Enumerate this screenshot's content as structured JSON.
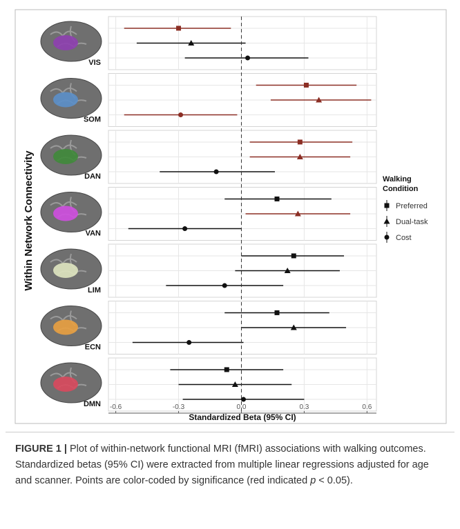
{
  "chart_data": {
    "type": "forest",
    "y_label": "Within Network Connectivity",
    "x_label": "Standardized Beta (95% CI)",
    "xlim": [
      -0.635,
      0.645
    ],
    "xticks": [
      -0.6,
      -0.3,
      {
        "value": 0,
        "label": "0.0"
      },
      0.3,
      0.6
    ],
    "grid": true,
    "legend_title": [
      "Walking",
      "Condition"
    ],
    "series": [
      {
        "name": "Preferred",
        "marker": "square"
      },
      {
        "name": "Dual-task",
        "marker": "triangle"
      },
      {
        "name": "Cost",
        "marker": "circle"
      }
    ],
    "panels": [
      {
        "name": "VIS",
        "color": "#8e3fb0",
        "values": [
          -0.3,
          -0.24,
          0.03
        ],
        "lower": [
          -0.56,
          -0.5,
          -0.27
        ],
        "upper": [
          -0.05,
          0.02,
          0.32
        ],
        "colors": [
          "#8b2e24",
          "#111111",
          "#111111"
        ]
      },
      {
        "name": "SOM",
        "color": "#5b8fc9",
        "values": [
          0.31,
          0.37,
          -0.29
        ],
        "lower": [
          0.07,
          0.14,
          -0.56
        ],
        "upper": [
          0.55,
          0.62,
          -0.02
        ],
        "colors": [
          "#8b2e24",
          "#8b2e24",
          "#8b2e24"
        ]
      },
      {
        "name": "DAN",
        "color": "#3f8a3a",
        "values": [
          0.28,
          0.28,
          -0.12
        ],
        "lower": [
          0.04,
          0.04,
          -0.39
        ],
        "upper": [
          0.53,
          0.52,
          0.16
        ],
        "colors": [
          "#8b2e24",
          "#8b2e24",
          "#111111"
        ]
      },
      {
        "name": "VAN",
        "color": "#cf4ee0",
        "values": [
          0.17,
          0.27,
          -0.27
        ],
        "lower": [
          -0.08,
          0.02,
          -0.54
        ],
        "upper": [
          0.43,
          0.52,
          0.0
        ],
        "colors": [
          "#111111",
          "#8b2e24",
          "#111111"
        ]
      },
      {
        "name": "LIM",
        "color": "#dfe6c0",
        "values": [
          0.25,
          0.22,
          -0.08
        ],
        "lower": [
          0.0,
          -0.03,
          -0.36
        ],
        "upper": [
          0.49,
          0.47,
          0.2
        ],
        "colors": [
          "#111111",
          "#111111",
          "#111111"
        ]
      },
      {
        "name": "ECN",
        "color": "#e9a040",
        "values": [
          0.17,
          0.25,
          -0.25
        ],
        "lower": [
          -0.08,
          0.0,
          -0.52
        ],
        "upper": [
          0.42,
          0.5,
          0.01
        ],
        "colors": [
          "#111111",
          "#111111",
          "#111111"
        ]
      },
      {
        "name": "DMN",
        "color": "#d9495d",
        "values": [
          -0.07,
          -0.03,
          0.01
        ],
        "lower": [
          -0.34,
          -0.3,
          -0.28
        ],
        "upper": [
          0.2,
          0.24,
          0.3
        ],
        "colors": [
          "#111111",
          "#111111",
          "#111111"
        ]
      }
    ]
  },
  "caption": {
    "label": "FIGURE 1 |",
    "text": " Plot of within-network functional MRI (fMRI) associations with walking outcomes. Standardized betas (95% CI) were extracted from multiple linear regressions adjusted for age and scanner. Points are color-coded by significance (red indicated ",
    "p": "p",
    "end": " < 0.05)."
  }
}
